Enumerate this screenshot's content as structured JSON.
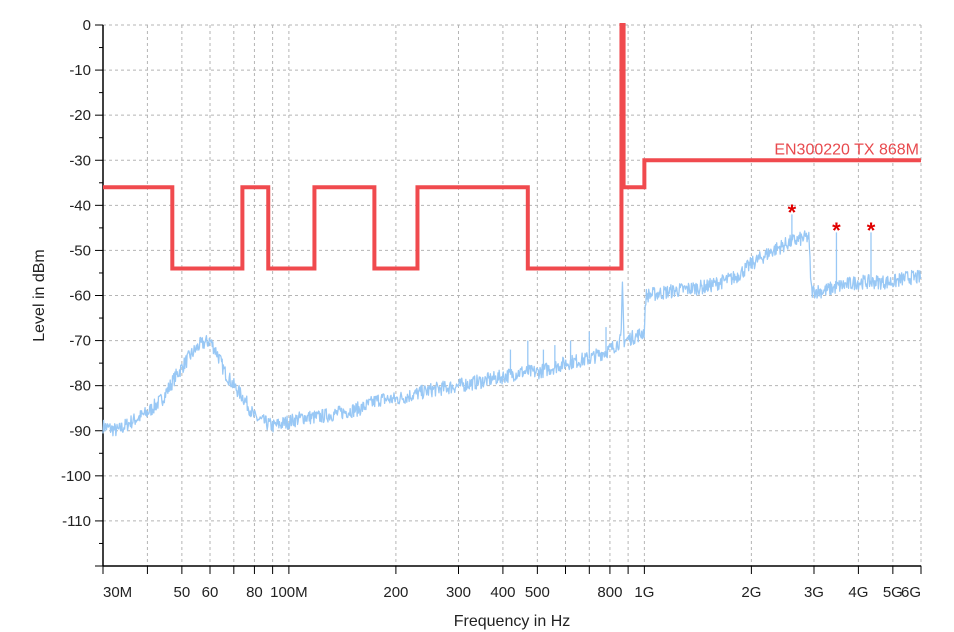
{
  "chart_data": {
    "type": "line",
    "title": "",
    "xlabel": "Frequency in Hz",
    "ylabel": "Level in dBm",
    "x_scale": "log",
    "x_range_hz": [
      30000000,
      6000000000
    ],
    "ylim": [
      -120,
      0
    ],
    "grid": true,
    "x_tick_labels": [
      {
        "hz": 30000000,
        "label": "30M"
      },
      {
        "hz": 50000000,
        "label": "50"
      },
      {
        "hz": 60000000,
        "label": "60"
      },
      {
        "hz": 80000000,
        "label": "80"
      },
      {
        "hz": 100000000,
        "label": "100M"
      },
      {
        "hz": 200000000,
        "label": "200"
      },
      {
        "hz": 300000000,
        "label": "300"
      },
      {
        "hz": 400000000,
        "label": "400"
      },
      {
        "hz": 500000000,
        "label": "500"
      },
      {
        "hz": 800000000,
        "label": "800"
      },
      {
        "hz": 1000000000,
        "label": "1G"
      },
      {
        "hz": 2000000000,
        "label": "2G"
      },
      {
        "hz": 3000000000,
        "label": "3G"
      },
      {
        "hz": 4000000000,
        "label": "4G"
      },
      {
        "hz": 5000000000,
        "label": "5G"
      },
      {
        "hz": 6000000000,
        "label": "6G"
      }
    ],
    "y_tick_labels": [
      "0",
      "-10",
      "-20",
      "-30",
      "-40",
      "-50",
      "-60",
      "-70",
      "-80",
      "-90",
      "-100",
      "-110"
    ],
    "series": [
      {
        "name": "EN300220 TX  868M",
        "role": "limit line",
        "color": "#f04a4e",
        "points": [
          [
            30000000,
            -36
          ],
          [
            47000000,
            -36
          ],
          [
            47000000,
            -54
          ],
          [
            74000000,
            -54
          ],
          [
            74000000,
            -36
          ],
          [
            87500000,
            -36
          ],
          [
            87500000,
            -54
          ],
          [
            118000000,
            -54
          ],
          [
            118000000,
            -36
          ],
          [
            174000000,
            -36
          ],
          [
            174000000,
            -54
          ],
          [
            230000000,
            -54
          ],
          [
            230000000,
            -36
          ],
          [
            470000000,
            -36
          ],
          [
            470000000,
            -54
          ],
          [
            862000000,
            -54
          ],
          [
            862000000,
            0
          ],
          [
            874000000,
            0
          ],
          [
            874000000,
            -36
          ],
          [
            1000000000,
            -36
          ],
          [
            1000000000,
            -30
          ],
          [
            6000000000,
            -30
          ]
        ]
      },
      {
        "role": "measured spectrum",
        "color": "#99c8f5",
        "points": [
          [
            30000000,
            -89
          ],
          [
            33000000,
            -90
          ],
          [
            36000000,
            -88
          ],
          [
            40000000,
            -86
          ],
          [
            44000000,
            -83
          ],
          [
            48000000,
            -78
          ],
          [
            52000000,
            -74
          ],
          [
            56000000,
            -71
          ],
          [
            60000000,
            -70
          ],
          [
            63000000,
            -73
          ],
          [
            66000000,
            -77
          ],
          [
            70000000,
            -80
          ],
          [
            75000000,
            -83
          ],
          [
            80000000,
            -87
          ],
          [
            90000000,
            -89
          ],
          [
            100000000,
            -88
          ],
          [
            110000000,
            -87
          ],
          [
            120000000,
            -87
          ],
          [
            140000000,
            -86
          ],
          [
            160000000,
            -85
          ],
          [
            180000000,
            -83
          ],
          [
            200000000,
            -83
          ],
          [
            250000000,
            -81
          ],
          [
            300000000,
            -80
          ],
          [
            350000000,
            -79
          ],
          [
            400000000,
            -78
          ],
          [
            450000000,
            -77
          ],
          [
            500000000,
            -77
          ],
          [
            550000000,
            -76
          ],
          [
            600000000,
            -75
          ],
          [
            700000000,
            -74
          ],
          [
            800000000,
            -72
          ],
          [
            860000000,
            -70
          ],
          [
            868000000,
            -57
          ],
          [
            876000000,
            -70
          ],
          [
            950000000,
            -69
          ],
          [
            1000000000,
            -68
          ],
          [
            1010000000,
            -60
          ],
          [
            1200000000,
            -59
          ],
          [
            1500000000,
            -58
          ],
          [
            1800000000,
            -56
          ],
          [
            2000000000,
            -53
          ],
          [
            2300000000,
            -50
          ],
          [
            2600000000,
            -48
          ],
          [
            2900000000,
            -47
          ],
          [
            2950000000,
            -59
          ],
          [
            3200000000,
            -59
          ],
          [
            3500000000,
            -58
          ],
          [
            4000000000,
            -57
          ],
          [
            4500000000,
            -57
          ],
          [
            5000000000,
            -57
          ],
          [
            5500000000,
            -56
          ],
          [
            6000000000,
            -56
          ]
        ],
        "spurs": [
          [
            420000000,
            -72
          ],
          [
            470000000,
            -70
          ],
          [
            520000000,
            -72
          ],
          [
            560000000,
            -71
          ],
          [
            620000000,
            -70
          ],
          [
            700000000,
            -68
          ],
          [
            780000000,
            -67
          ],
          [
            1650000000,
            -56
          ],
          [
            2600000000,
            -42
          ],
          [
            3470000000,
            -46
          ],
          [
            4340000000,
            -46
          ]
        ]
      }
    ],
    "peak_markers": [
      {
        "hz": 2600000000,
        "level": -41,
        "symbol": "*"
      },
      {
        "hz": 3470000000,
        "level": -45,
        "symbol": "*"
      },
      {
        "hz": 4340000000,
        "level": -45,
        "symbol": "*"
      }
    ],
    "limit_label": {
      "text": "EN300220 TX  868M",
      "anchor_hz": 6000000000,
      "anchor_level": -30
    }
  }
}
